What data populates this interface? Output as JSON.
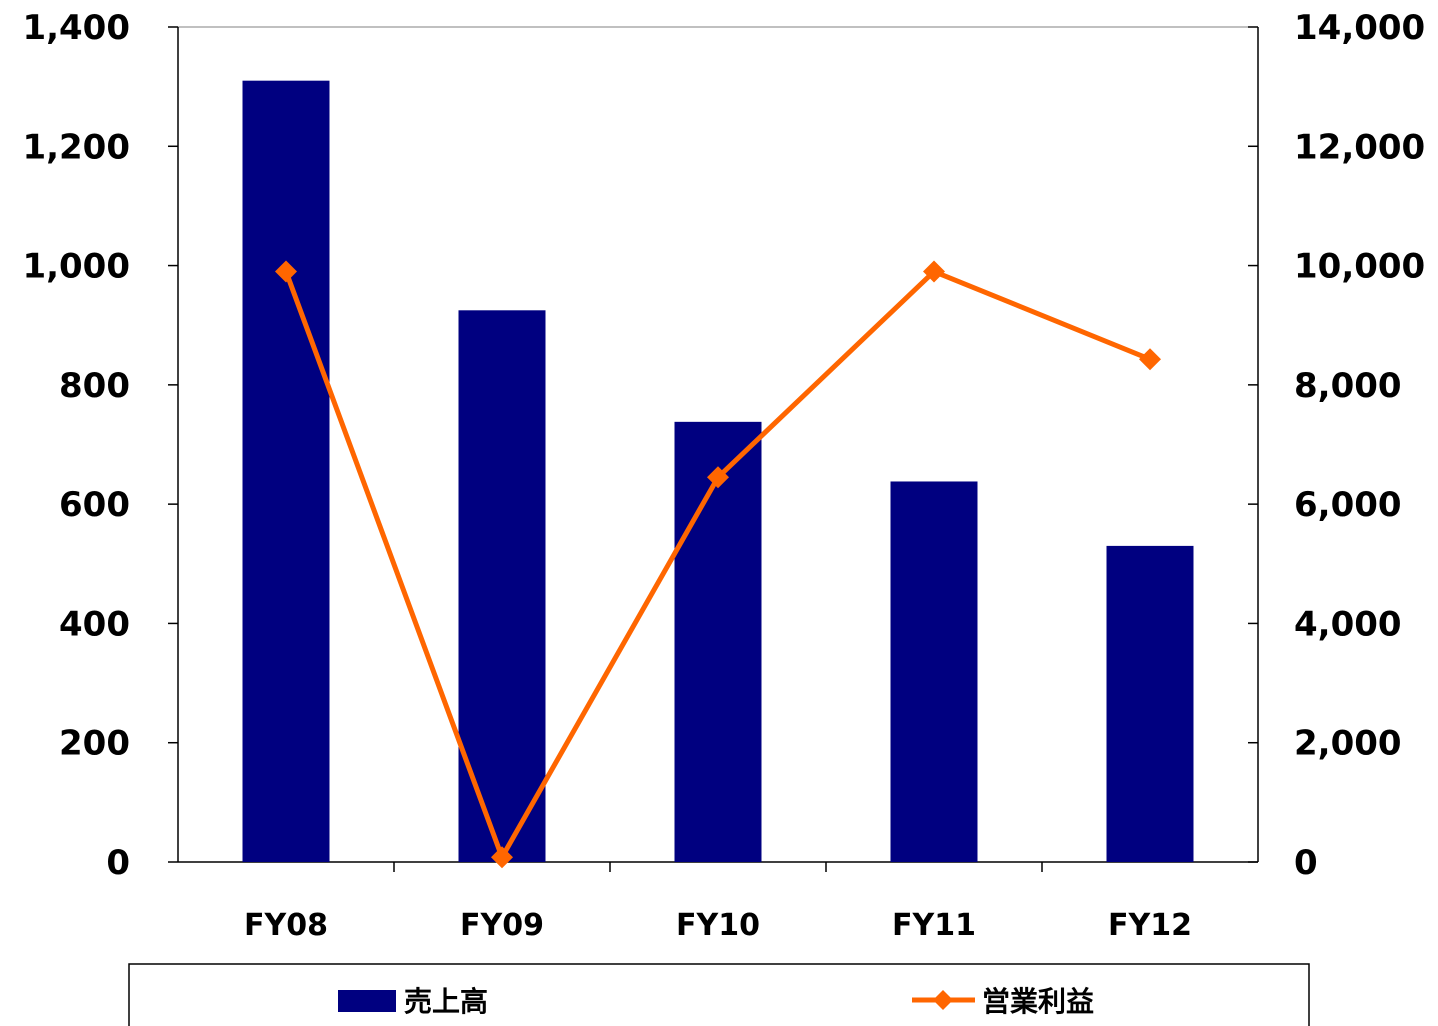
{
  "chart_data": {
    "type": "bar",
    "categories": [
      "FY08",
      "FY09",
      "FY10",
      "FY11",
      "FY12"
    ],
    "series": [
      {
        "name": "売上高",
        "type": "bar",
        "axis": "left",
        "values": [
          1310,
          925,
          738,
          638,
          530
        ]
      },
      {
        "name": "営業利益",
        "type": "line",
        "axis": "right",
        "values": [
          9900,
          80,
          6450,
          9900,
          8430
        ]
      }
    ],
    "y_left": {
      "min": 0,
      "max": 1400,
      "ticks": [
        "0",
        "200",
        "400",
        "600",
        "800",
        "1,000",
        "1,200",
        "1,400"
      ]
    },
    "y_right": {
      "min": 0,
      "max": 14000,
      "ticks": [
        "0",
        "2,000",
        "4,000",
        "6,000",
        "8,000",
        "10,000",
        "12,000",
        "14,000"
      ]
    },
    "title": "",
    "xlabel": "",
    "ylabel": "",
    "grid": false,
    "legend_placement": "bottom",
    "colors": {
      "bar": "#000080",
      "line": "#FF6600",
      "axis": "#000000"
    }
  }
}
